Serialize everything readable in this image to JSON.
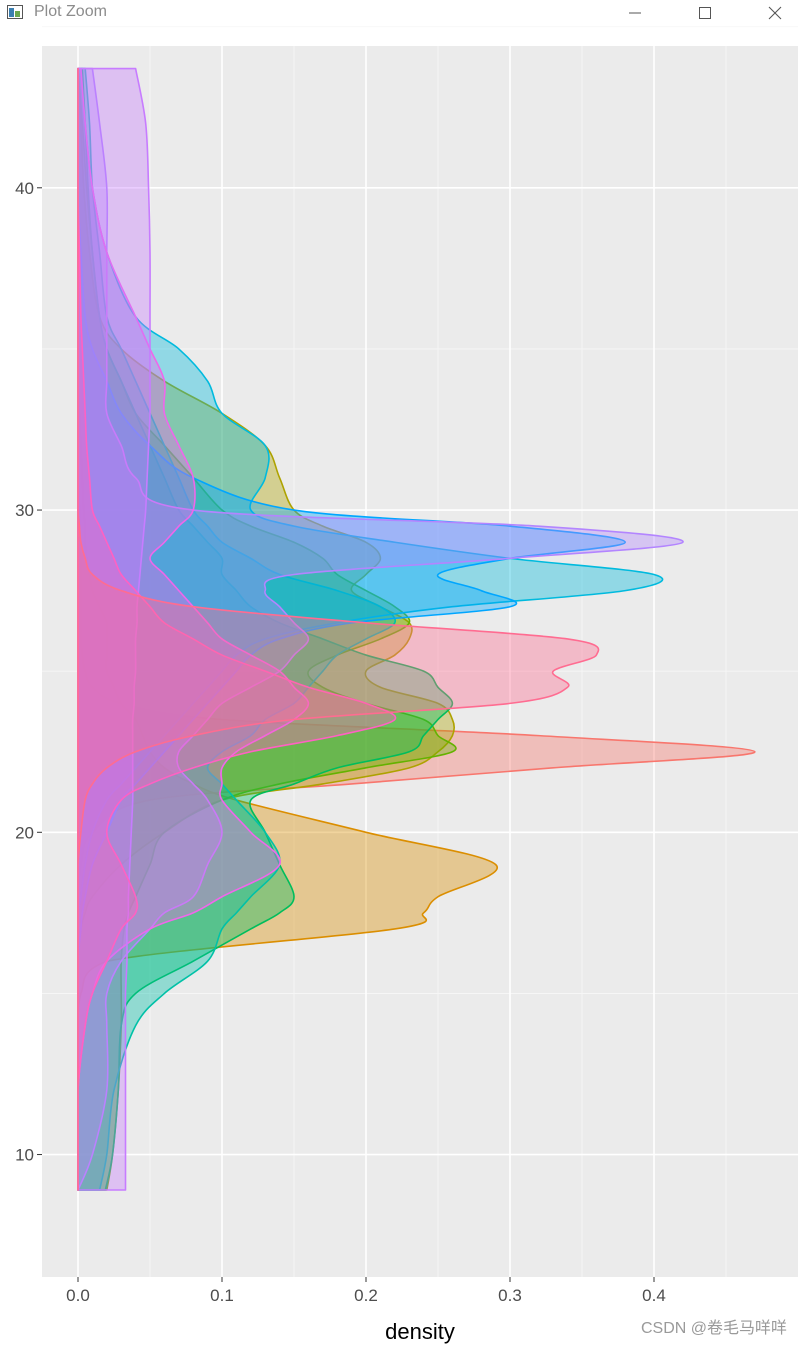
{
  "window": {
    "title": "Plot Zoom",
    "buttons": {
      "minimize": "minimize-icon",
      "maximize": "maximize-icon",
      "close": "close-icon"
    }
  },
  "watermark": "CSDN @卷毛马咩咩",
  "chart_data": {
    "type": "area",
    "orientation": "horizontal-density",
    "title": "",
    "xlabel": "density",
    "ylabel": "",
    "xlim": [
      -0.025,
      0.5
    ],
    "ylim": [
      6.2,
      44.4
    ],
    "xticks": [
      0.0,
      0.1,
      0.2,
      0.3,
      0.4
    ],
    "xtick_labels": [
      "0.0",
      "0.1",
      "0.2",
      "0.3",
      "0.4"
    ],
    "yticks": [
      10,
      20,
      30,
      40
    ],
    "ytick_labels": [
      "10",
      "20",
      "30",
      "40"
    ],
    "grid": true,
    "legend": "none",
    "background": "#ebebeb",
    "y_sample_points": [
      8.9,
      10,
      12,
      14,
      15,
      16,
      17,
      17.5,
      18,
      19,
      20,
      21,
      21.5,
      22,
      22.5,
      23,
      23.5,
      24,
      24.5,
      25,
      25.5,
      26,
      26.5,
      27,
      27.5,
      28,
      28.5,
      29,
      29.5,
      30,
      31,
      32,
      33,
      34,
      35,
      36,
      38,
      40,
      42,
      43.7
    ],
    "series": [
      {
        "color": "#F8766D",
        "values": [
          0,
          0,
          0,
          0,
          0,
          0,
          0,
          0,
          0,
          0.002,
          0.01,
          0.05,
          0.19,
          0.33,
          0.47,
          0.32,
          0.1,
          0.03,
          0.01,
          0.005,
          0.003,
          0.002,
          0.002,
          0.002,
          0.002,
          0.002,
          0.002,
          0.001,
          0.001,
          0.001,
          0,
          0,
          0,
          0,
          0,
          0,
          0,
          0,
          0,
          0
        ]
      },
      {
        "color": "#DB8E00",
        "values": [
          0,
          0,
          0,
          0,
          0.002,
          0.02,
          0.22,
          0.24,
          0.25,
          0.29,
          0.2,
          0.11,
          0.08,
          0.06,
          0.05,
          0.045,
          0.04,
          0.03,
          0.025,
          0.02,
          0.02,
          0.02,
          0.02,
          0.015,
          0.01,
          0.008,
          0.006,
          0.005,
          0.005,
          0.004,
          0.003,
          0.002,
          0.001,
          0,
          0,
          0,
          0,
          0,
          0,
          0
        ]
      },
      {
        "color": "#AEA200",
        "values": [
          0,
          0,
          0,
          0,
          0,
          0,
          0.002,
          0.005,
          0.01,
          0.03,
          0.06,
          0.1,
          0.17,
          0.23,
          0.25,
          0.26,
          0.26,
          0.25,
          0.21,
          0.2,
          0.22,
          0.23,
          0.23,
          0.21,
          0.19,
          0.2,
          0.21,
          0.2,
          0.17,
          0.15,
          0.14,
          0.13,
          0.1,
          0.06,
          0.03,
          0.015,
          0.008,
          0.004,
          0.002,
          0
        ]
      },
      {
        "color": "#64B200",
        "values": [
          0.02,
          0.024,
          0.028,
          0.03,
          0.03,
          0.03,
          0.032,
          0.035,
          0.04,
          0.05,
          0.06,
          0.1,
          0.14,
          0.2,
          0.26,
          0.25,
          0.24,
          0.2,
          0.17,
          0.16,
          0.18,
          0.21,
          0.23,
          0.22,
          0.2,
          0.18,
          0.17,
          0.15,
          0.12,
          0.1,
          0.08,
          0.06,
          0.04,
          0.03,
          0.02,
          0.015,
          0.01,
          0.006,
          0.003,
          0
        ]
      },
      {
        "color": "#00BD5C",
        "values": [
          0.019,
          0.024,
          0.028,
          0.03,
          0.04,
          0.08,
          0.12,
          0.14,
          0.15,
          0.14,
          0.13,
          0.12,
          0.15,
          0.18,
          0.23,
          0.24,
          0.25,
          0.26,
          0.25,
          0.24,
          0.2,
          0.17,
          0.14,
          0.12,
          0.11,
          0.1,
          0.1,
          0.09,
          0.08,
          0.07,
          0.06,
          0.05,
          0.04,
          0.03,
          0.02,
          0.015,
          0.01,
          0.007,
          0.005,
          0.003
        ]
      },
      {
        "color": "#00C1A7",
        "values": [
          0.015,
          0.02,
          0.025,
          0.04,
          0.06,
          0.09,
          0.1,
          0.11,
          0.12,
          0.14,
          0.13,
          0.11,
          0.1,
          0.09,
          0.1,
          0.12,
          0.13,
          0.15,
          0.16,
          0.17,
          0.18,
          0.2,
          0.22,
          0.21,
          0.18,
          0.14,
          0.12,
          0.1,
          0.09,
          0.08,
          0.07,
          0.06,
          0.05,
          0.04,
          0.03,
          0.02,
          0.015,
          0.01,
          0.008,
          0.005
        ]
      },
      {
        "color": "#00BADE",
        "values": [
          0,
          0,
          0,
          0,
          0,
          0,
          0,
          0,
          0.002,
          0.005,
          0.01,
          0.02,
          0.03,
          0.04,
          0.05,
          0.06,
          0.07,
          0.08,
          0.09,
          0.1,
          0.11,
          0.13,
          0.18,
          0.26,
          0.38,
          0.4,
          0.3,
          0.22,
          0.15,
          0.12,
          0.13,
          0.13,
          0.1,
          0.09,
          0.07,
          0.04,
          0.02,
          0.01,
          0.005,
          0.002
        ]
      },
      {
        "color": "#00A6FF",
        "values": [
          0,
          0,
          0,
          0,
          0,
          0,
          0.002,
          0.003,
          0.005,
          0.01,
          0.02,
          0.03,
          0.04,
          0.05,
          0.06,
          0.07,
          0.08,
          0.09,
          0.1,
          0.11,
          0.12,
          0.14,
          0.19,
          0.3,
          0.28,
          0.25,
          0.3,
          0.38,
          0.3,
          0.15,
          0.08,
          0.05,
          0.03,
          0.02,
          0.01,
          0.005,
          0.002,
          0,
          0,
          0
        ]
      },
      {
        "color": "#B385FF",
        "values": [
          0,
          0.01,
          0.02,
          0.02,
          0.02,
          0.03,
          0.05,
          0.06,
          0.08,
          0.09,
          0.1,
          0.09,
          0.08,
          0.07,
          0.07,
          0.08,
          0.09,
          0.1,
          0.12,
          0.14,
          0.15,
          0.16,
          0.15,
          0.14,
          0.13,
          0.15,
          0.3,
          0.42,
          0.32,
          0.08,
          0.04,
          0.03,
          0.02,
          0.02,
          0.02,
          0.02,
          0.02,
          0.02,
          0.015,
          0.01
        ]
      },
      {
        "color": "#EF67EB",
        "values": [
          0,
          0,
          0,
          0.005,
          0.01,
          0.02,
          0.05,
          0.08,
          0.1,
          0.14,
          0.12,
          0.1,
          0.1,
          0.1,
          0.11,
          0.13,
          0.15,
          0.16,
          0.15,
          0.14,
          0.12,
          0.1,
          0.09,
          0.08,
          0.07,
          0.06,
          0.05,
          0.06,
          0.07,
          0.08,
          0.08,
          0.07,
          0.06,
          0.06,
          0.05,
          0.04,
          0.02,
          0.01,
          0.005,
          0.002
        ]
      },
      {
        "color": "#C77CFF",
        "values": [
          0.033,
          0.033,
          0.033,
          0.033,
          0.033,
          0.034,
          0.034,
          0.035,
          0.035,
          0.036,
          0.037,
          0.038,
          0.038,
          0.038,
          0.038,
          0.038,
          0.038,
          0.039,
          0.039,
          0.04,
          0.04,
          0.04,
          0.041,
          0.041,
          0.042,
          0.043,
          0.044,
          0.045,
          0.046,
          0.047,
          0.048,
          0.049,
          0.05,
          0.05,
          0.05,
          0.05,
          0.05,
          0.049,
          0.047,
          0.04
        ]
      },
      {
        "color": "#FF61C3",
        "values": [
          0,
          0,
          0,
          0.005,
          0.01,
          0.02,
          0.03,
          0.04,
          0.04,
          0.03,
          0.02,
          0.03,
          0.05,
          0.08,
          0.12,
          0.18,
          0.22,
          0.2,
          0.16,
          0.13,
          0.1,
          0.08,
          0.06,
          0.05,
          0.04,
          0.03,
          0.025,
          0.02,
          0.015,
          0.01,
          0.008,
          0.006,
          0.005,
          0.004,
          0.003,
          0.002,
          0.001,
          0,
          0,
          0
        ]
      },
      {
        "color": "#FF6C91",
        "values": [
          0,
          0,
          0,
          0,
          0,
          0,
          0,
          0,
          0,
          0,
          0.002,
          0.005,
          0.01,
          0.02,
          0.04,
          0.08,
          0.15,
          0.3,
          0.34,
          0.33,
          0.36,
          0.34,
          0.2,
          0.08,
          0.03,
          0.01,
          0.005,
          0.002,
          0.001,
          0,
          0,
          0,
          0,
          0,
          0,
          0,
          0,
          0,
          0,
          0
        ]
      }
    ]
  }
}
